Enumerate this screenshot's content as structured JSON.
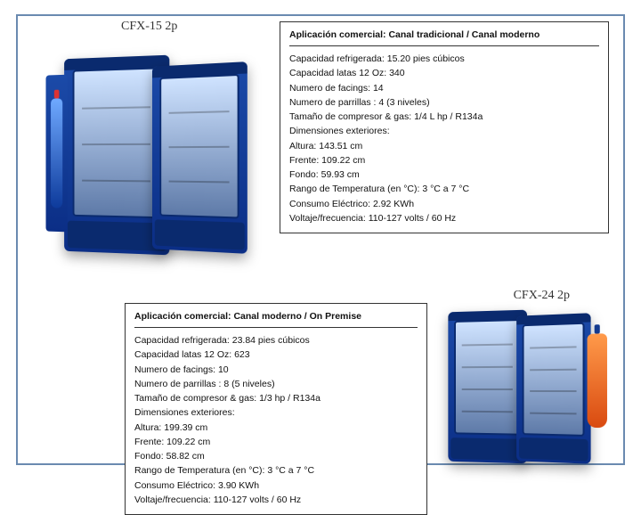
{
  "frame": {
    "border_color": "#6a8ab0"
  },
  "model_top": {
    "title": "CFX-15 2p",
    "header": "Aplicación comercial: Canal tradicional / Canal moderno",
    "lines": [
      "Capacidad refrigerada:  15.20 pies cúbicos",
      "Capacidad latas 12 Oz: 340",
      "Numero de facings: 14",
      "Numero de parrillas : 4 (3 niveles)",
      "Tamaño de compresor & gas:  1/4 L hp / R134a",
      "Dimensiones exteriores:",
      "Altura: 143.51 cm",
      "Frente: 109.22 cm",
      "Fondo: 59.93 cm",
      "Rango de Temperatura (en °C): 3 °C  a 7 °C",
      "Consumo Eléctrico: 2.92 KWh",
      "Voltaje/frecuencia: 110-127 volts / 60 Hz"
    ]
  },
  "model_bottom": {
    "title": "CFX-24 2p",
    "header": "Aplicación comercial: Canal moderno / On Premise",
    "lines": [
      "Capacidad refrigerada: 23.84 pies cúbicos",
      "Capacidad latas 12 Oz: 623",
      "Numero de facings: 10",
      "Numero de parrillas : 8 (5 niveles)",
      "Tamaño de compresor & gas:  1/3 hp / R134a",
      "Dimensiones exteriores:",
      "Altura: 199.39 cm",
      "Frente: 109.22 cm",
      "Fondo: 58.82 cm",
      "Rango de Temperatura (en °C): 3 °C a 7 °C",
      "Consumo Eléctrico: 3.90 KWh",
      "Voltaje/frecuencia: 110-127 volts / 60 Hz"
    ]
  },
  "colors": {
    "fridge_body": "#0b2e86",
    "fridge_door": "#cfe3ff",
    "accent_orange": "#d94a10"
  }
}
